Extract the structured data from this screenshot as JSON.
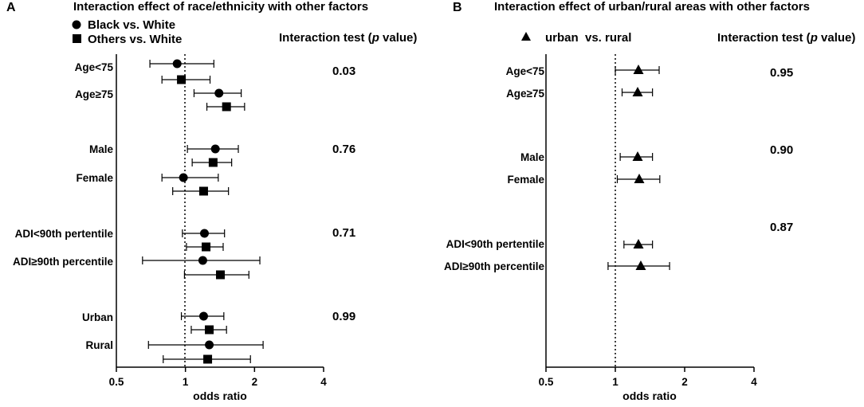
{
  "chart_data": [
    {
      "panel": "A",
      "type": "forest",
      "title": "Interaction effect of race/ethnicity with other factors",
      "xlabel": "odds ratio",
      "xscale": "log2",
      "xlim": [
        0.5,
        4
      ],
      "xticks": [
        "0.5",
        "1",
        "2",
        "4"
      ],
      "reference_line": 1,
      "interaction_header": "Interaction test (",
      "interaction_header_p": "p",
      "interaction_header_end": " value)",
      "legend": [
        {
          "marker": "circle",
          "label": "Black vs. White"
        },
        {
          "marker": "square",
          "label": "Others vs. White"
        }
      ],
      "groups": [
        {
          "p_value": "0.03",
          "categories": [
            {
              "label": "Age<75",
              "estimates": [
                {
                  "series": "Black vs. White",
                  "or": 0.92,
                  "lo": 0.7,
                  "hi": 1.33
                },
                {
                  "series": "Others vs. White",
                  "or": 0.96,
                  "lo": 0.79,
                  "hi": 1.28
                }
              ]
            },
            {
              "label": "Age≥75",
              "estimates": [
                {
                  "series": "Black vs. White",
                  "or": 1.4,
                  "lo": 1.09,
                  "hi": 1.75
                },
                {
                  "series": "Others vs. White",
                  "or": 1.51,
                  "lo": 1.24,
                  "hi": 1.81
                }
              ]
            }
          ]
        },
        {
          "p_value": "0.76",
          "categories": [
            {
              "label": "Male",
              "estimates": [
                {
                  "series": "Black vs. White",
                  "or": 1.35,
                  "lo": 1.02,
                  "hi": 1.7
                },
                {
                  "series": "Others vs. White",
                  "or": 1.32,
                  "lo": 1.07,
                  "hi": 1.59
                }
              ]
            },
            {
              "label": "Female",
              "estimates": [
                {
                  "series": "Black vs. White",
                  "or": 0.98,
                  "lo": 0.79,
                  "hi": 1.39
                },
                {
                  "series": "Others vs. White",
                  "or": 1.2,
                  "lo": 0.88,
                  "hi": 1.54
                }
              ]
            }
          ]
        },
        {
          "p_value": "0.71",
          "categories": [
            {
              "label": "ADI<90th pertentile",
              "estimates": [
                {
                  "series": "Black vs. White",
                  "or": 1.21,
                  "lo": 0.97,
                  "hi": 1.48
                },
                {
                  "series": "Others vs. White",
                  "or": 1.23,
                  "lo": 1.01,
                  "hi": 1.46
                }
              ]
            },
            {
              "label": "ADI≥90th percentile",
              "estimates": [
                {
                  "series": "Black vs. White",
                  "or": 1.19,
                  "lo": 0.65,
                  "hi": 2.11
                },
                {
                  "series": "Others vs. White",
                  "or": 1.42,
                  "lo": 0.99,
                  "hi": 1.89
                }
              ]
            }
          ]
        },
        {
          "p_value": "0.99",
          "categories": [
            {
              "label": "Urban",
              "estimates": [
                {
                  "series": "Black vs. White",
                  "or": 1.2,
                  "lo": 0.96,
                  "hi": 1.47
                },
                {
                  "series": "Others vs. White",
                  "or": 1.27,
                  "lo": 1.06,
                  "hi": 1.51
                }
              ]
            },
            {
              "label": "Rural",
              "estimates": [
                {
                  "series": "Black vs. White",
                  "or": 1.27,
                  "lo": 0.69,
                  "hi": 2.18
                },
                {
                  "series": "Others vs. White",
                  "or": 1.25,
                  "lo": 0.8,
                  "hi": 1.92
                }
              ]
            }
          ]
        }
      ]
    },
    {
      "panel": "B",
      "type": "forest",
      "title": "Interaction effect of urban/rural areas with other factors",
      "xlabel": "odds ratio",
      "xscale": "log2",
      "xlim": [
        0.5,
        4
      ],
      "xticks": [
        "0.5",
        "1",
        "2",
        "4"
      ],
      "reference_line": 1,
      "interaction_header": "Interaction test (",
      "interaction_header_p": "p",
      "interaction_header_end": " value)",
      "legend": [
        {
          "marker": "triangle",
          "label": "urban  vs. rural"
        }
      ],
      "groups": [
        {
          "p_value": "0.95",
          "categories": [
            {
              "label": "Age<75",
              "estimates": [
                {
                  "series": "urban  vs. rural",
                  "or": 1.26,
                  "lo": 1.0,
                  "hi": 1.55
                }
              ]
            },
            {
              "label": "Age≥75",
              "estimates": [
                {
                  "series": "urban  vs. rural",
                  "or": 1.25,
                  "lo": 1.07,
                  "hi": 1.45
                }
              ]
            }
          ]
        },
        {
          "p_value": "0.90",
          "categories": [
            {
              "label": "Male",
              "estimates": [
                {
                  "series": "urban  vs. rural",
                  "or": 1.25,
                  "lo": 1.05,
                  "hi": 1.45
                }
              ]
            },
            {
              "label": "Female",
              "estimates": [
                {
                  "series": "urban  vs. rural",
                  "or": 1.27,
                  "lo": 1.02,
                  "hi": 1.56
                }
              ]
            }
          ]
        },
        {
          "p_value": "0.87",
          "categories": [
            {
              "label": "ADI<90th pertentile",
              "estimates": [
                {
                  "series": "urban  vs. rural",
                  "or": 1.26,
                  "lo": 1.09,
                  "hi": 1.45
                }
              ]
            },
            {
              "label": "ADI≥90th percentile",
              "estimates": [
                {
                  "series": "urban  vs. rural",
                  "or": 1.29,
                  "lo": 0.93,
                  "hi": 1.72
                }
              ]
            }
          ]
        }
      ]
    }
  ]
}
